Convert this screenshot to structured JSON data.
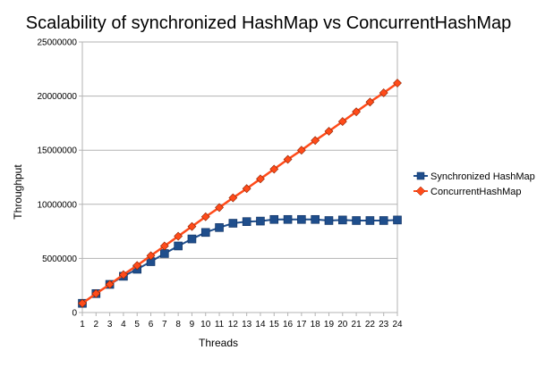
{
  "chart_data": {
    "type": "line",
    "title": "Scalability of synchronized HashMap vs ConcurrentHashMap",
    "xlabel": "Threads",
    "ylabel": "Throughput",
    "categories": [
      "1",
      "2",
      "3",
      "4",
      "5",
      "6",
      "7",
      "8",
      "9",
      "10",
      "11",
      "12",
      "13",
      "14",
      "15",
      "16",
      "17",
      "18",
      "19",
      "20",
      "21",
      "22",
      "23",
      "24"
    ],
    "ylim": [
      0,
      25000000
    ],
    "yticks": [
      "0",
      "5000000",
      "10000000",
      "15000000",
      "20000000",
      "25000000"
    ],
    "grid": "horizontal",
    "legend_position": "right",
    "series": [
      {
        "name": "Synchronized HashMap",
        "color": "#1f4e8c",
        "marker": "square",
        "values": [
          850000,
          1750000,
          2600000,
          3350000,
          4000000,
          4700000,
          5450000,
          6150000,
          6800000,
          7400000,
          7850000,
          8250000,
          8400000,
          8450000,
          8600000,
          8600000,
          8600000,
          8600000,
          8500000,
          8550000,
          8500000,
          8500000,
          8500000,
          8550000
        ]
      },
      {
        "name": "ConcurrentHashMap",
        "color": "#ff4b1a",
        "marker": "diamond",
        "values": [
          850000,
          1750000,
          2600000,
          3500000,
          4350000,
          5250000,
          6150000,
          7050000,
          7950000,
          8850000,
          9700000,
          10600000,
          11450000,
          12350000,
          13250000,
          14150000,
          15000000,
          15900000,
          16750000,
          17650000,
          18550000,
          19450000,
          20300000,
          21200000
        ]
      }
    ]
  }
}
